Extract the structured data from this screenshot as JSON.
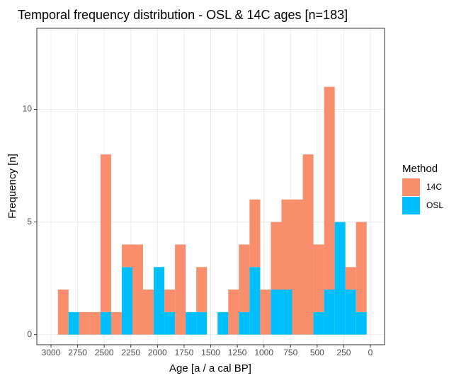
{
  "chart_data": {
    "type": "histogram",
    "title": "Temporal frequency distribution - OSL & 14C ages [n=183]",
    "x_label": "Age [a / a cal BP]",
    "y_label": "Frequency [n]",
    "legend_title": "Method",
    "bins": [
      2935,
      2835,
      2735,
      2635,
      2535,
      2435,
      2335,
      2235,
      2135,
      2035,
      1935,
      1835,
      1735,
      1635,
      1535,
      1435,
      1335,
      1235,
      1135,
      1035,
      935,
      835,
      735,
      635,
      535,
      435,
      335,
      235,
      135,
      35
    ],
    "series": [
      {
        "name": "14C",
        "color": "#f88e6c",
        "values": [
          2,
          0,
          1,
          1,
          7,
          1,
          1,
          4,
          2,
          0,
          1,
          4,
          0,
          2,
          0,
          0,
          2,
          3,
          3,
          2,
          3,
          4,
          6,
          8,
          3,
          9,
          0,
          1,
          4
        ]
      },
      {
        "name": "OSL",
        "color": "#00bfff",
        "values": [
          0,
          1,
          0,
          0,
          1,
          0,
          3,
          0,
          0,
          3,
          1,
          0,
          1,
          1,
          0,
          1,
          0,
          1,
          3,
          0,
          2,
          2,
          0,
          0,
          1,
          2,
          5,
          2,
          1
        ]
      }
    ],
    "stack_order": [
      "OSL",
      "14C"
    ],
    "xlim": [
      3133,
      -133
    ],
    "xticks": [
      3000,
      2750,
      2500,
      2250,
      2000,
      1750,
      1500,
      1250,
      1000,
      750,
      500,
      250,
      0
    ],
    "ylim": [
      -0.45,
      13.6
    ],
    "yticks": [
      0,
      5,
      10
    ],
    "grid": true,
    "legend_position": "right"
  }
}
